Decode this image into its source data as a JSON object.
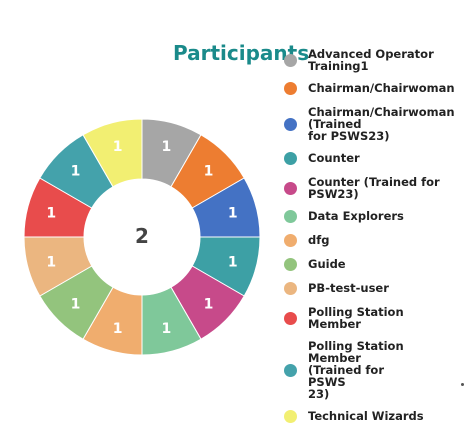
{
  "chart_data": {
    "type": "pie",
    "title": "Participants",
    "center_total": "2",
    "categories": [
      "Advanced Operator\nTraining1",
      "Chairman/Chairwoman",
      "Chairman/Chairwoman\n(Trained\nfor PSWS23)",
      "Counter",
      "Counter (Trained for\nPSW23)",
      "Data Explorers",
      "dfg",
      "Guide",
      "PB-test-user",
      "Polling Station\nMember",
      "Polling Station\nMember\n(Trained for\nPSWS\n23)",
      "Technical Wizards"
    ],
    "values": [
      1,
      1,
      1,
      1,
      1,
      1,
      1,
      1,
      1,
      1,
      1,
      1
    ],
    "colors": [
      "#a6a6a6",
      "#ed7d31",
      "#4472c4",
      "#3da0a5",
      "#c74a8a",
      "#7fc89a",
      "#f0ad6e",
      "#93c47d",
      "#ebb680",
      "#e84c4c",
      "#44a2ab",
      "#f2ef72"
    ],
    "legend_position": "right"
  }
}
